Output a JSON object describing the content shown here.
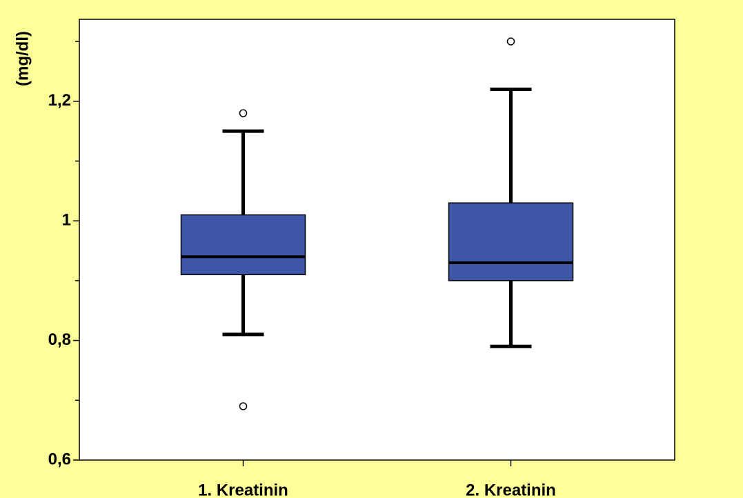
{
  "chart_data": {
    "type": "box",
    "ylabel": "(mg/dl)",
    "categories": [
      "1. Kreatinin",
      "2. Kreatinin"
    ],
    "boxes": [
      {
        "whislo": 0.81,
        "q1": 0.91,
        "med": 0.94,
        "q3": 1.01,
        "whishi": 1.15,
        "fliers": [
          1.18,
          0.69
        ]
      },
      {
        "whislo": 0.79,
        "q1": 0.9,
        "med": 0.93,
        "q3": 1.03,
        "whishi": 1.22,
        "fliers": [
          1.3
        ]
      }
    ],
    "color": "#3d56a8",
    "ylim": [
      0.6,
      1.337
    ],
    "yticks": [
      {
        "value": 0.6,
        "label": "0,6"
      },
      {
        "value": 0.8,
        "label": "0,8"
      },
      1,
      {
        "value": 1.2,
        "label": "1,2"
      }
    ],
    "yminorticks": [
      0.7,
      0.9,
      1.1,
      1.3
    ]
  }
}
